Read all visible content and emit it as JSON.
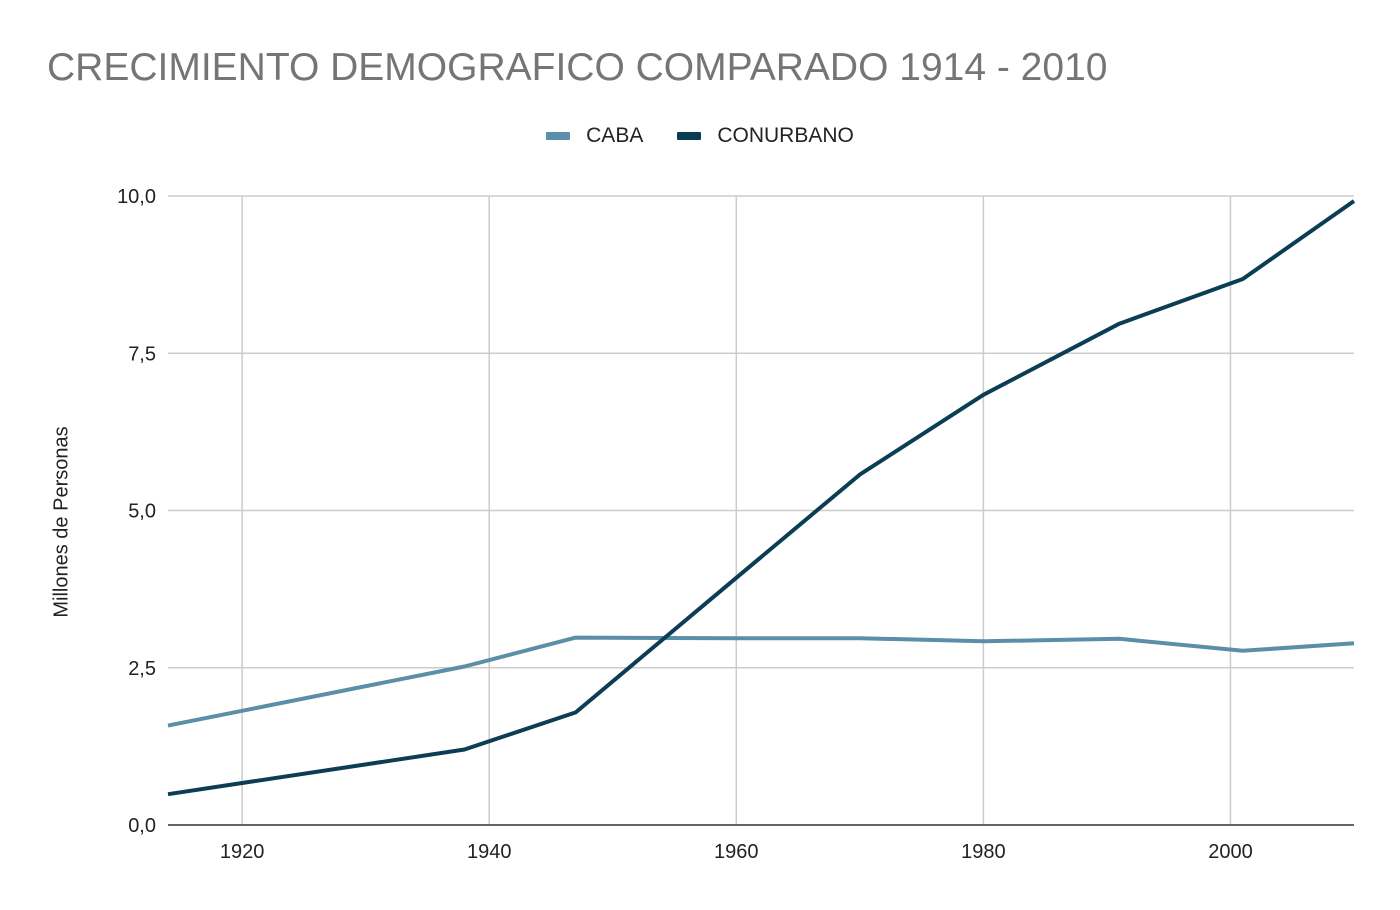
{
  "chart_data": {
    "type": "line",
    "title": "CRECIMIENTO DEMOGRAFICO COMPARADO 1914 - 2010",
    "ylabel": "Millones de Personas",
    "xlabel": "",
    "xlim": [
      1914,
      2010
    ],
    "ylim": [
      0,
      10
    ],
    "xticks": [
      1920,
      1940,
      1960,
      1980,
      2000
    ],
    "xtick_labels": [
      "1920",
      "1940",
      "1960",
      "1980",
      "2000"
    ],
    "yticks": [
      0,
      2.5,
      5,
      7.5,
      10
    ],
    "ytick_labels": [
      "0,0",
      "2,5",
      "5,0",
      "7,5",
      "10,0"
    ],
    "grid": true,
    "legend_position": "top-center",
    "series": [
      {
        "name": "CABA",
        "color": "#5b8fa8",
        "x": [
          1914,
          1938,
          1947,
          1960,
          1970,
          1980,
          1991,
          2001,
          2010
        ],
        "y": [
          1.58,
          2.52,
          2.98,
          2.97,
          2.97,
          2.92,
          2.96,
          2.77,
          2.89
        ]
      },
      {
        "name": "CONURBANO",
        "color": "#0b3d55",
        "x": [
          1914,
          1938,
          1947,
          1960,
          1970,
          1980,
          1991,
          2001,
          2010
        ],
        "y": [
          0.49,
          1.2,
          1.79,
          3.93,
          5.57,
          6.84,
          7.97,
          8.68,
          9.92
        ]
      }
    ]
  }
}
